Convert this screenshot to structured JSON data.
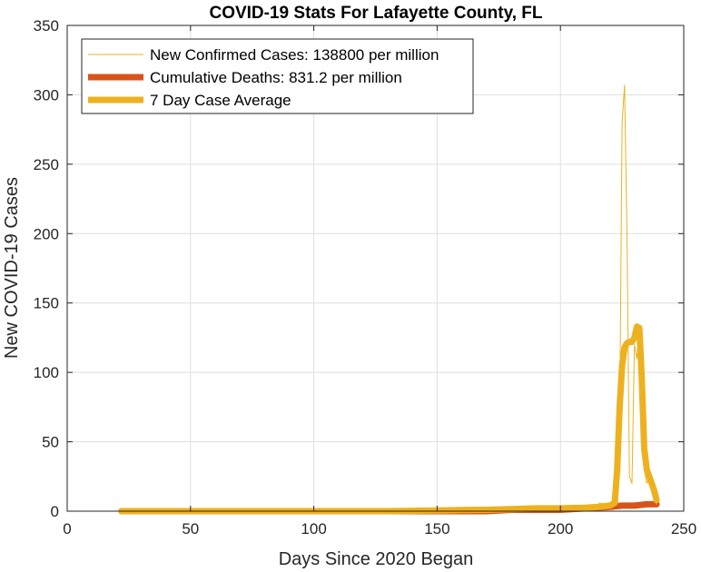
{
  "chart_data": {
    "type": "line",
    "title": "COVID-19 Stats For Lafayette County, FL",
    "xlabel": "Days Since 2020 Began",
    "ylabel": "New COVID-19 Cases",
    "xlim": [
      0,
      250
    ],
    "ylim": [
      0,
      350
    ],
    "xticks": [
      0,
      50,
      100,
      150,
      200,
      250
    ],
    "yticks": [
      0,
      50,
      100,
      150,
      200,
      250,
      300,
      350
    ],
    "grid": true,
    "legend_position": "top-left",
    "series": [
      {
        "name": "New Confirmed Cases: 138800 per million",
        "color": "#EDB120",
        "style": "thin",
        "points": [
          [
            22,
            0
          ],
          [
            60,
            0
          ],
          [
            100,
            0
          ],
          [
            140,
            0
          ],
          [
            160,
            0
          ],
          [
            165,
            1
          ],
          [
            170,
            0
          ],
          [
            175,
            1
          ],
          [
            180,
            0
          ],
          [
            185,
            2
          ],
          [
            188,
            0
          ],
          [
            190,
            1
          ],
          [
            192,
            3
          ],
          [
            194,
            0
          ],
          [
            196,
            2
          ],
          [
            198,
            1
          ],
          [
            200,
            3
          ],
          [
            202,
            0
          ],
          [
            204,
            1
          ],
          [
            206,
            2
          ],
          [
            208,
            0
          ],
          [
            210,
            4
          ],
          [
            212,
            2
          ],
          [
            214,
            1
          ],
          [
            216,
            6
          ],
          [
            218,
            3
          ],
          [
            220,
            2
          ],
          [
            221,
            8
          ],
          [
            222,
            5
          ],
          [
            223,
            10
          ],
          [
            224,
            60
          ],
          [
            225,
            280
          ],
          [
            226,
            307
          ],
          [
            227,
            200
          ],
          [
            228,
            25
          ],
          [
            229,
            20
          ],
          [
            230,
            120
          ],
          [
            231,
            110
          ],
          [
            232,
            130
          ],
          [
            233,
            60
          ],
          [
            234,
            30
          ],
          [
            235,
            20
          ],
          [
            236,
            25
          ],
          [
            237,
            20
          ],
          [
            238,
            10
          ],
          [
            239,
            5
          ]
        ]
      },
      {
        "name": "Cumulative Deaths: 831.2 per million",
        "color": "#D95319",
        "style": "thick",
        "points": [
          [
            22,
            0
          ],
          [
            100,
            0
          ],
          [
            170,
            0
          ],
          [
            180,
            1
          ],
          [
            200,
            1
          ],
          [
            210,
            2
          ],
          [
            220,
            3
          ],
          [
            225,
            4
          ],
          [
            230,
            4
          ],
          [
            235,
            5
          ],
          [
            239,
            5
          ]
        ]
      },
      {
        "name": "7 Day Case Average",
        "color": "#EDB120",
        "style": "thicker",
        "points": [
          [
            22,
            0
          ],
          [
            60,
            0
          ],
          [
            100,
            0
          ],
          [
            130,
            0
          ],
          [
            150,
            0.5
          ],
          [
            160,
            0.8
          ],
          [
            170,
            1
          ],
          [
            180,
            1.5
          ],
          [
            190,
            2
          ],
          [
            200,
            2
          ],
          [
            210,
            2.5
          ],
          [
            215,
            3
          ],
          [
            220,
            4
          ],
          [
            222,
            6
          ],
          [
            223,
            30
          ],
          [
            224,
            75
          ],
          [
            225,
            105
          ],
          [
            226,
            118
          ],
          [
            227,
            121
          ],
          [
            228,
            122
          ],
          [
            229,
            122
          ],
          [
            230,
            125
          ],
          [
            231,
            133
          ],
          [
            232,
            132
          ],
          [
            233,
            95
          ],
          [
            234,
            45
          ],
          [
            235,
            30
          ],
          [
            236,
            25
          ],
          [
            237,
            20
          ],
          [
            238,
            15
          ],
          [
            239,
            8
          ]
        ]
      }
    ]
  }
}
